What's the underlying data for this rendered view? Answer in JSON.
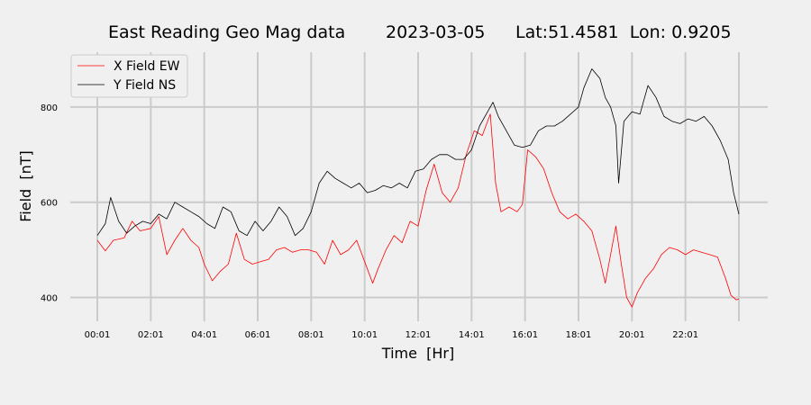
{
  "chart_data": {
    "type": "line",
    "title": "East Reading Geo Mag data",
    "date": "2023-03-05",
    "location": "Lat:51.4581  Lon: 0.9205",
    "xlabel": "Time  [Hr]",
    "ylabel": "Field  [nT]",
    "xlim": [
      0,
      24.3
    ],
    "ylim": [
      350,
      915
    ],
    "xticks": [
      {
        "value": 0,
        "label": "00:01"
      },
      {
        "value": 2,
        "label": "02:01"
      },
      {
        "value": 4,
        "label": "04:01"
      },
      {
        "value": 6,
        "label": "06:01"
      },
      {
        "value": 8,
        "label": "08:01"
      },
      {
        "value": 10,
        "label": "10:01"
      },
      {
        "value": 12,
        "label": "12:01"
      },
      {
        "value": 14,
        "label": "14:01"
      },
      {
        "value": 16,
        "label": "16:01"
      },
      {
        "value": 18,
        "label": "18:01"
      },
      {
        "value": 20,
        "label": "20:01"
      },
      {
        "value": 22,
        "label": "22:01"
      },
      {
        "value": 24,
        "label": ""
      }
    ],
    "yticks": [
      400,
      600,
      800
    ],
    "grid": true,
    "legend_position": "top-left",
    "series": [
      {
        "name": "X Field EW",
        "color": "#ff0000",
        "points": [
          [
            0.0,
            520
          ],
          [
            0.3,
            498
          ],
          [
            0.6,
            520
          ],
          [
            1.0,
            525
          ],
          [
            1.3,
            560
          ],
          [
            1.6,
            540
          ],
          [
            2.0,
            545
          ],
          [
            2.3,
            570
          ],
          [
            2.6,
            490
          ],
          [
            2.9,
            520
          ],
          [
            3.2,
            545
          ],
          [
            3.5,
            520
          ],
          [
            3.8,
            505
          ],
          [
            4.0,
            470
          ],
          [
            4.3,
            435
          ],
          [
            4.6,
            455
          ],
          [
            4.9,
            470
          ],
          [
            5.2,
            535
          ],
          [
            5.5,
            480
          ],
          [
            5.8,
            470
          ],
          [
            6.1,
            475
          ],
          [
            6.4,
            480
          ],
          [
            6.7,
            500
          ],
          [
            7.0,
            505
          ],
          [
            7.3,
            495
          ],
          [
            7.6,
            500
          ],
          [
            7.9,
            500
          ],
          [
            8.2,
            495
          ],
          [
            8.5,
            470
          ],
          [
            8.8,
            520
          ],
          [
            9.1,
            490
          ],
          [
            9.4,
            500
          ],
          [
            9.7,
            520
          ],
          [
            10.0,
            475
          ],
          [
            10.3,
            430
          ],
          [
            10.5,
            460
          ],
          [
            10.8,
            500
          ],
          [
            11.1,
            530
          ],
          [
            11.4,
            515
          ],
          [
            11.7,
            560
          ],
          [
            12.0,
            550
          ],
          [
            12.3,
            625
          ],
          [
            12.6,
            680
          ],
          [
            12.9,
            620
          ],
          [
            13.2,
            600
          ],
          [
            13.5,
            630
          ],
          [
            13.8,
            700
          ],
          [
            14.1,
            750
          ],
          [
            14.4,
            740
          ],
          [
            14.7,
            785
          ],
          [
            14.9,
            640
          ],
          [
            15.1,
            580
          ],
          [
            15.4,
            590
          ],
          [
            15.7,
            580
          ],
          [
            15.9,
            595
          ],
          [
            16.1,
            710
          ],
          [
            16.4,
            695
          ],
          [
            16.7,
            670
          ],
          [
            17.0,
            620
          ],
          [
            17.3,
            580
          ],
          [
            17.6,
            565
          ],
          [
            17.9,
            575
          ],
          [
            18.2,
            560
          ],
          [
            18.5,
            540
          ],
          [
            18.8,
            480
          ],
          [
            19.0,
            430
          ],
          [
            19.2,
            490
          ],
          [
            19.4,
            550
          ],
          [
            19.6,
            470
          ],
          [
            19.8,
            400
          ],
          [
            20.0,
            380
          ],
          [
            20.2,
            410
          ],
          [
            20.5,
            440
          ],
          [
            20.8,
            460
          ],
          [
            21.1,
            490
          ],
          [
            21.4,
            505
          ],
          [
            21.7,
            500
          ],
          [
            22.0,
            490
          ],
          [
            22.3,
            500
          ],
          [
            22.6,
            495
          ],
          [
            22.9,
            490
          ],
          [
            23.2,
            485
          ],
          [
            23.5,
            440
          ],
          [
            23.7,
            405
          ],
          [
            23.9,
            395
          ],
          [
            24.0,
            397
          ]
        ]
      },
      {
        "name": "Y Field NS",
        "color": "#000000",
        "points": [
          [
            0.0,
            530
          ],
          [
            0.3,
            555
          ],
          [
            0.5,
            610
          ],
          [
            0.8,
            560
          ],
          [
            1.1,
            535
          ],
          [
            1.4,
            550
          ],
          [
            1.7,
            560
          ],
          [
            2.0,
            555
          ],
          [
            2.3,
            575
          ],
          [
            2.6,
            565
          ],
          [
            2.9,
            600
          ],
          [
            3.2,
            590
          ],
          [
            3.5,
            580
          ],
          [
            3.8,
            570
          ],
          [
            4.1,
            555
          ],
          [
            4.4,
            545
          ],
          [
            4.7,
            590
          ],
          [
            5.0,
            580
          ],
          [
            5.3,
            540
          ],
          [
            5.6,
            530
          ],
          [
            5.9,
            560
          ],
          [
            6.2,
            540
          ],
          [
            6.5,
            560
          ],
          [
            6.8,
            590
          ],
          [
            7.1,
            570
          ],
          [
            7.4,
            530
          ],
          [
            7.7,
            545
          ],
          [
            8.0,
            580
          ],
          [
            8.3,
            640
          ],
          [
            8.6,
            665
          ],
          [
            8.9,
            650
          ],
          [
            9.2,
            640
          ],
          [
            9.5,
            630
          ],
          [
            9.8,
            640
          ],
          [
            10.1,
            620
          ],
          [
            10.4,
            625
          ],
          [
            10.7,
            635
          ],
          [
            11.0,
            630
          ],
          [
            11.3,
            640
          ],
          [
            11.6,
            630
          ],
          [
            11.9,
            665
          ],
          [
            12.2,
            670
          ],
          [
            12.5,
            690
          ],
          [
            12.8,
            700
          ],
          [
            13.1,
            700
          ],
          [
            13.4,
            690
          ],
          [
            13.7,
            690
          ],
          [
            14.0,
            710
          ],
          [
            14.3,
            760
          ],
          [
            14.6,
            790
          ],
          [
            14.8,
            810
          ],
          [
            15.0,
            780
          ],
          [
            15.3,
            750
          ],
          [
            15.6,
            720
          ],
          [
            15.9,
            715
          ],
          [
            16.2,
            720
          ],
          [
            16.5,
            750
          ],
          [
            16.8,
            760
          ],
          [
            17.1,
            760
          ],
          [
            17.4,
            770
          ],
          [
            17.7,
            785
          ],
          [
            18.0,
            800
          ],
          [
            18.2,
            840
          ],
          [
            18.5,
            880
          ],
          [
            18.8,
            860
          ],
          [
            19.0,
            820
          ],
          [
            19.2,
            800
          ],
          [
            19.4,
            760
          ],
          [
            19.5,
            640
          ],
          [
            19.7,
            770
          ],
          [
            20.0,
            790
          ],
          [
            20.3,
            785
          ],
          [
            20.6,
            845
          ],
          [
            20.9,
            820
          ],
          [
            21.2,
            780
          ],
          [
            21.5,
            770
          ],
          [
            21.8,
            765
          ],
          [
            22.1,
            775
          ],
          [
            22.4,
            770
          ],
          [
            22.7,
            780
          ],
          [
            23.0,
            760
          ],
          [
            23.3,
            730
          ],
          [
            23.6,
            690
          ],
          [
            23.8,
            620
          ],
          [
            24.0,
            575
          ]
        ]
      }
    ]
  }
}
